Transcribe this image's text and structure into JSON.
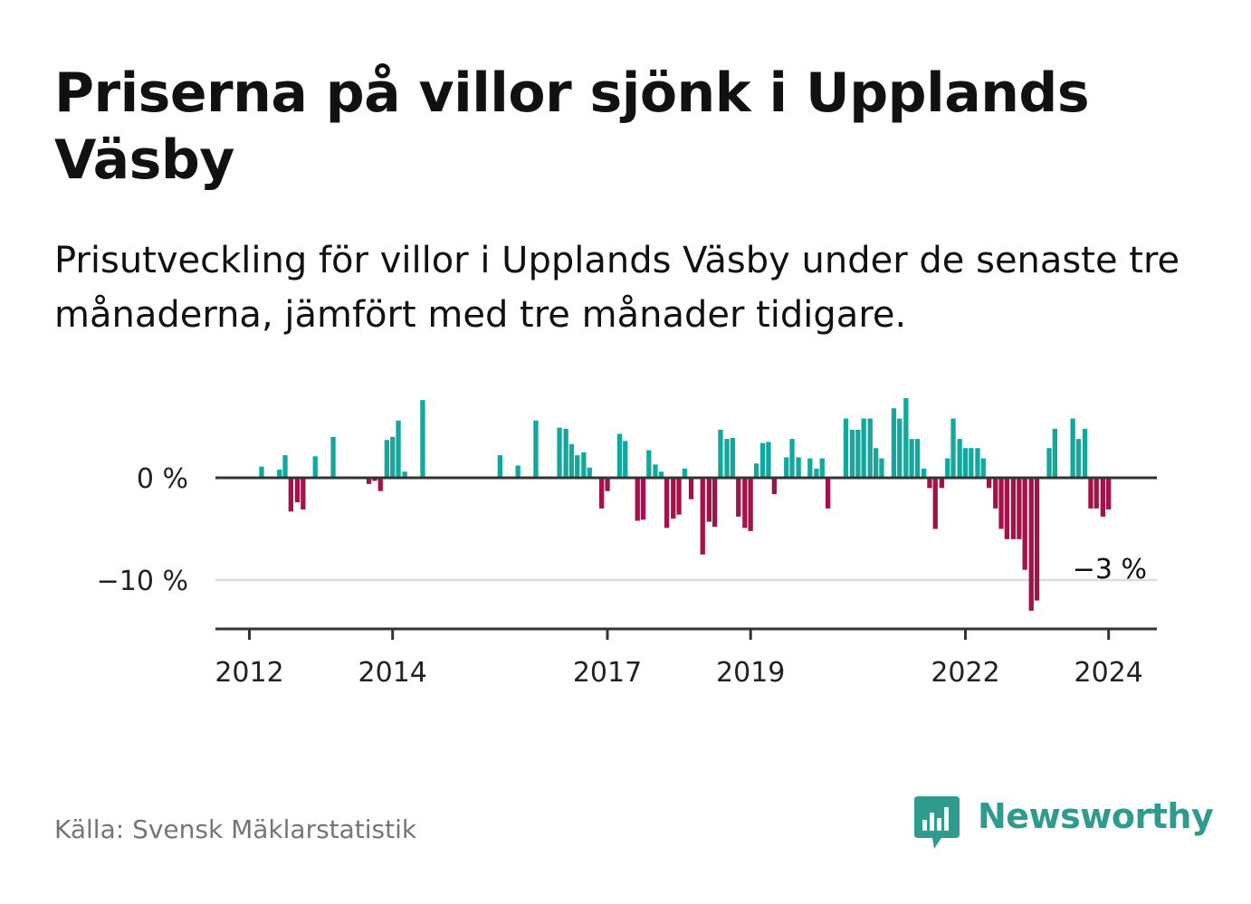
{
  "title": "Priserna på villor sjönk i Upplands Väsby",
  "subtitle": "Prisutveckling för villor i Upplands Väsby under de senaste tre månaderna, jämfört med tre månader tidigare.",
  "source": "Källa: Svensk Mäklarstatistik",
  "brand": "Newsworthy",
  "colors": {
    "positive": "#13a89e",
    "negative": "#a3134a",
    "axis": "#333333",
    "grid": "#dddddd",
    "text": "#111111",
    "brand": "#2f9b8e"
  },
  "chart_data": {
    "type": "bar",
    "title": "Prisutveckling för villor i Upplands Väsby",
    "ylabel": "",
    "xlabel": "",
    "ylim": [
      -15,
      8.5
    ],
    "yticks": [
      0,
      -10
    ],
    "ytick_labels": [
      "0 %",
      "−10 %"
    ],
    "x_start": 2011.7,
    "x_end": 2024.8,
    "xticks": [
      2012,
      2014,
      2017,
      2019,
      2022,
      2024
    ],
    "xtick_labels": [
      "2012",
      "2014",
      "2017",
      "2019",
      "2022",
      "2024"
    ],
    "annotation": {
      "label": "−3 %",
      "value": -3.1
    },
    "series": [
      {
        "name": "Prisutveckling",
        "points": [
          {
            "x": 2012.17,
            "y": 1.1
          },
          {
            "x": 2012.42,
            "y": 0.8
          },
          {
            "x": 2012.5,
            "y": 2.2
          },
          {
            "x": 2012.58,
            "y": -3.3
          },
          {
            "x": 2012.67,
            "y": -2.4
          },
          {
            "x": 2012.75,
            "y": -3.1
          },
          {
            "x": 2012.92,
            "y": 2.1
          },
          {
            "x": 2013.17,
            "y": 4.0
          },
          {
            "x": 2013.67,
            "y": -0.6
          },
          {
            "x": 2013.75,
            "y": -0.3
          },
          {
            "x": 2013.83,
            "y": -1.3
          },
          {
            "x": 2013.92,
            "y": 3.7
          },
          {
            "x": 2014.0,
            "y": 4.0
          },
          {
            "x": 2014.08,
            "y": 5.6
          },
          {
            "x": 2014.17,
            "y": 0.6
          },
          {
            "x": 2014.42,
            "y": 7.6
          },
          {
            "x": 2015.5,
            "y": 2.2
          },
          {
            "x": 2015.75,
            "y": 1.2
          },
          {
            "x": 2016.0,
            "y": 5.6
          },
          {
            "x": 2016.33,
            "y": 4.9
          },
          {
            "x": 2016.42,
            "y": 4.8
          },
          {
            "x": 2016.5,
            "y": 3.3
          },
          {
            "x": 2016.58,
            "y": 2.2
          },
          {
            "x": 2016.67,
            "y": 2.5
          },
          {
            "x": 2016.75,
            "y": 1.0
          },
          {
            "x": 2016.92,
            "y": -3.0
          },
          {
            "x": 2017.0,
            "y": -1.3
          },
          {
            "x": 2017.17,
            "y": 4.3
          },
          {
            "x": 2017.25,
            "y": 3.6
          },
          {
            "x": 2017.42,
            "y": -4.2
          },
          {
            "x": 2017.5,
            "y": -4.1
          },
          {
            "x": 2017.58,
            "y": 2.7
          },
          {
            "x": 2017.67,
            "y": 1.3
          },
          {
            "x": 2017.75,
            "y": 0.6
          },
          {
            "x": 2017.83,
            "y": -4.9
          },
          {
            "x": 2017.92,
            "y": -4.0
          },
          {
            "x": 2018.0,
            "y": -3.6
          },
          {
            "x": 2018.08,
            "y": 0.9
          },
          {
            "x": 2018.17,
            "y": -2.1
          },
          {
            "x": 2018.33,
            "y": -7.5
          },
          {
            "x": 2018.42,
            "y": -4.3
          },
          {
            "x": 2018.5,
            "y": -4.8
          },
          {
            "x": 2018.58,
            "y": 4.7
          },
          {
            "x": 2018.67,
            "y": 3.8
          },
          {
            "x": 2018.75,
            "y": 3.9
          },
          {
            "x": 2018.83,
            "y": -3.8
          },
          {
            "x": 2018.92,
            "y": -4.9
          },
          {
            "x": 2019.0,
            "y": -5.2
          },
          {
            "x": 2019.08,
            "y": 1.4
          },
          {
            "x": 2019.17,
            "y": 3.4
          },
          {
            "x": 2019.25,
            "y": 3.5
          },
          {
            "x": 2019.33,
            "y": -1.6
          },
          {
            "x": 2019.5,
            "y": 2.0
          },
          {
            "x": 2019.58,
            "y": 3.8
          },
          {
            "x": 2019.67,
            "y": 2.0
          },
          {
            "x": 2019.83,
            "y": 1.9
          },
          {
            "x": 2019.92,
            "y": 0.9
          },
          {
            "x": 2020.0,
            "y": 1.9
          },
          {
            "x": 2020.08,
            "y": -3.0
          },
          {
            "x": 2020.33,
            "y": 5.8
          },
          {
            "x": 2020.42,
            "y": 4.7
          },
          {
            "x": 2020.5,
            "y": 4.7
          },
          {
            "x": 2020.58,
            "y": 5.8
          },
          {
            "x": 2020.67,
            "y": 5.8
          },
          {
            "x": 2020.75,
            "y": 2.9
          },
          {
            "x": 2020.83,
            "y": 1.9
          },
          {
            "x": 2021.0,
            "y": 6.8
          },
          {
            "x": 2021.08,
            "y": 5.8
          },
          {
            "x": 2021.17,
            "y": 7.8
          },
          {
            "x": 2021.25,
            "y": 3.8
          },
          {
            "x": 2021.33,
            "y": 3.8
          },
          {
            "x": 2021.42,
            "y": 0.9
          },
          {
            "x": 2021.5,
            "y": -1.0
          },
          {
            "x": 2021.58,
            "y": -5.0
          },
          {
            "x": 2021.67,
            "y": -1.0
          },
          {
            "x": 2021.75,
            "y": 1.9
          },
          {
            "x": 2021.83,
            "y": 5.8
          },
          {
            "x": 2021.92,
            "y": 3.8
          },
          {
            "x": 2022.0,
            "y": 2.9
          },
          {
            "x": 2022.08,
            "y": 2.9
          },
          {
            "x": 2022.17,
            "y": 2.9
          },
          {
            "x": 2022.25,
            "y": 1.9
          },
          {
            "x": 2022.33,
            "y": -1.0
          },
          {
            "x": 2022.42,
            "y": -3.0
          },
          {
            "x": 2022.5,
            "y": -5.0
          },
          {
            "x": 2022.58,
            "y": -6.0
          },
          {
            "x": 2022.67,
            "y": -6.0
          },
          {
            "x": 2022.75,
            "y": -6.0
          },
          {
            "x": 2022.83,
            "y": -9.0
          },
          {
            "x": 2022.92,
            "y": -13.0
          },
          {
            "x": 2023.0,
            "y": -12.0
          },
          {
            "x": 2023.17,
            "y": 2.9
          },
          {
            "x": 2023.25,
            "y": 4.8
          },
          {
            "x": 2023.5,
            "y": 5.8
          },
          {
            "x": 2023.58,
            "y": 3.8
          },
          {
            "x": 2023.67,
            "y": 4.8
          },
          {
            "x": 2023.75,
            "y": -3.0
          },
          {
            "x": 2023.83,
            "y": -3.0
          },
          {
            "x": 2023.92,
            "y": -3.8
          },
          {
            "x": 2024.0,
            "y": -3.1
          }
        ]
      }
    ]
  }
}
